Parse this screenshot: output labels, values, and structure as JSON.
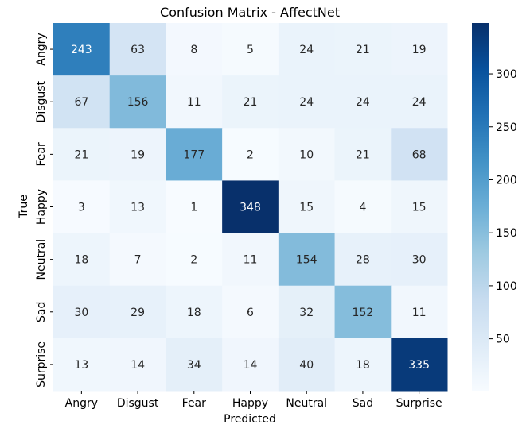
{
  "chart_data": {
    "type": "heatmap",
    "title": "Confusion Matrix - AffectNet",
    "xlabel": "Predicted",
    "ylabel": "True",
    "x_categories": [
      "Angry",
      "Disgust",
      "Fear",
      "Happy",
      "Neutral",
      "Sad",
      "Surprise"
    ],
    "y_categories": [
      "Angry",
      "Disgust",
      "Fear",
      "Happy",
      "Neutral",
      "Sad",
      "Surprise"
    ],
    "matrix": [
      [
        243,
        63,
        8,
        5,
        24,
        21,
        19
      ],
      [
        67,
        156,
        11,
        21,
        24,
        24,
        24
      ],
      [
        21,
        19,
        177,
        2,
        10,
        21,
        68
      ],
      [
        3,
        13,
        1,
        348,
        15,
        4,
        15
      ],
      [
        18,
        7,
        2,
        11,
        154,
        28,
        30
      ],
      [
        30,
        29,
        18,
        6,
        32,
        152,
        11
      ],
      [
        13,
        14,
        34,
        14,
        40,
        18,
        335
      ]
    ],
    "colormap": "Blues",
    "color_range": [
      1,
      348
    ],
    "colorbar_ticks": [
      50,
      100,
      150,
      200,
      250,
      300
    ],
    "annotated": true,
    "grid": false
  }
}
